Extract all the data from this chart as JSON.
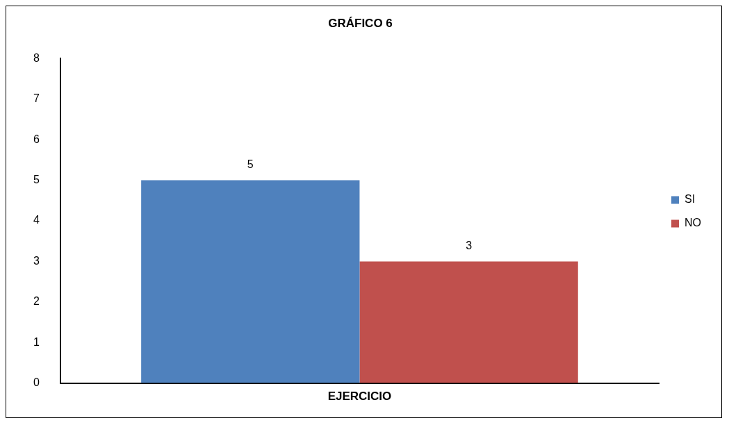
{
  "chart_data": {
    "type": "bar",
    "title": "GRÁFICO 6",
    "categories": [
      "EJERCICIO"
    ],
    "series": [
      {
        "name": "SI",
        "color": "#4f81bd",
        "values": [
          5
        ]
      },
      {
        "name": "NO",
        "color": "#c0504d",
        "values": [
          3
        ]
      }
    ],
    "ylim": [
      0,
      8
    ],
    "yticks": [
      0,
      1,
      2,
      3,
      4,
      5,
      6,
      7,
      8
    ],
    "grid": false,
    "legend": "right",
    "data_labels": true
  }
}
